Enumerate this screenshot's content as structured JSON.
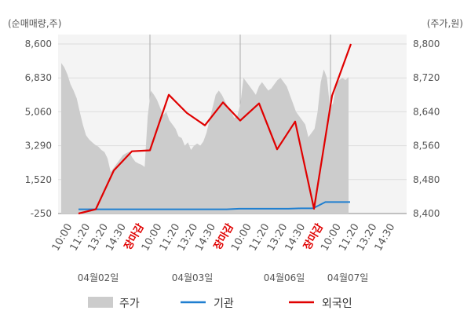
{
  "chart_data": {
    "type": "line",
    "left_axis_unit": "(순매매량,주)",
    "right_axis_unit": "(주가,원)",
    "left_ticks": [
      "8,600",
      "6,830",
      "5,060",
      "3,290",
      "1,520",
      "-250"
    ],
    "right_ticks": [
      "8,800",
      "8,720",
      "8,640",
      "8,560",
      "8,480",
      "8,400"
    ],
    "left_ylim": [
      -250,
      8600
    ],
    "right_ylim": [
      8400,
      8800
    ],
    "x_tick_labels": [
      "10:00",
      "11:20",
      "13:20",
      "14:30",
      "장마감",
      "10:00",
      "11:20",
      "13:20",
      "14:30",
      "장마감",
      "10:00",
      "11:20",
      "13:20",
      "14:30",
      "장마감",
      "10:00",
      "11:20",
      "13:20",
      "14:30"
    ],
    "date_labels": [
      "04월02일",
      "04월03일",
      "04월06일",
      "04월07일"
    ],
    "colors": {
      "price": "#cccccc",
      "institution": "#1f7fd0",
      "foreign": "#e00000",
      "close_label": "#e00000"
    },
    "series": [
      {
        "name": "주가",
        "axis": "right",
        "type": "area",
        "values": [
          8755,
          8745,
          8728,
          8705,
          8690,
          8672,
          8640,
          8610,
          8585,
          8575,
          8568,
          8562,
          8558,
          8550,
          8545,
          8530,
          8498,
          8508,
          8518,
          8528,
          8538,
          8542,
          8546,
          8532,
          8522,
          8518,
          8515,
          8510,
          8630,
          8690,
          8680,
          8668,
          8650,
          8632,
          8640,
          8620,
          8610,
          8600,
          8582,
          8578,
          8560,
          8568,
          8550,
          8560,
          8565,
          8560,
          8570,
          8590,
          8620,
          8650,
          8680,
          8690,
          8680,
          8665,
          8650,
          8640,
          8625,
          8630,
          8660,
          8720,
          8710,
          8700,
          8690,
          8680,
          8700,
          8710,
          8700,
          8690,
          8695,
          8705,
          8715,
          8720,
          8710,
          8700,
          8680,
          8660,
          8640,
          8630,
          8620,
          8610,
          8580,
          8590,
          8600,
          8640,
          8710,
          8740,
          8720,
          8650,
          8660,
          8705,
          8715,
          8720,
          8715,
          8722
        ]
      },
      {
        "name": "기관",
        "axis": "left",
        "type": "line",
        "values": [
          -30,
          -30,
          -30,
          -30,
          -30,
          -30,
          -30,
          -30,
          -30,
          -30,
          -30,
          -30,
          -30,
          0,
          0,
          0,
          0,
          0,
          20,
          20,
          350,
          350,
          350
        ]
      },
      {
        "name": "외국인",
        "axis": "left",
        "type": "line",
        "values": [
          -250,
          -30,
          2000,
          3000,
          3050,
          5950,
          5000,
          4350,
          5550,
          4600,
          5500,
          3100,
          4550,
          0,
          5900,
          8600
        ]
      }
    ]
  }
}
